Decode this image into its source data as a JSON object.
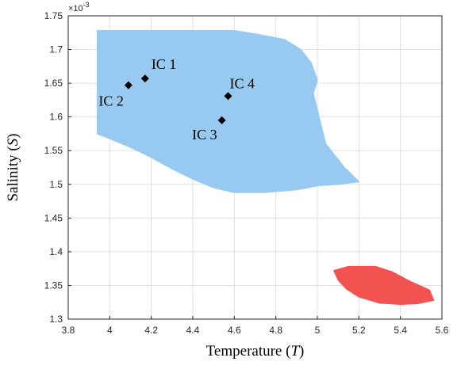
{
  "chart_data": {
    "type": "scatter",
    "title": "",
    "xlabel": {
      "text": "Temperature (",
      "symbol": "T",
      "close": ")"
    },
    "ylabel": {
      "text": "Salinity (",
      "symbol": "S",
      "close": ")"
    },
    "y_multiplier": "×10",
    "y_exponent": "-3",
    "xlim": [
      3.8,
      5.6
    ],
    "ylim": [
      1.3,
      1.75
    ],
    "xticks": [
      "3.8",
      "4",
      "4.2",
      "4.4",
      "4.6",
      "4.8",
      "5",
      "5.2",
      "5.4",
      "5.6"
    ],
    "yticks": [
      "1.3",
      "1.35",
      "1.4",
      "1.45",
      "1.5",
      "1.55",
      "1.6",
      "1.65",
      "1.7",
      "1.75"
    ],
    "grid": true,
    "regions": [
      {
        "color": "#98c9f0",
        "outline": [
          [
            3.94,
            1.728
          ],
          [
            4.6,
            1.728
          ],
          [
            4.72,
            1.722
          ],
          [
            4.84,
            1.715
          ],
          [
            4.92,
            1.7
          ],
          [
            4.97,
            1.68
          ],
          [
            5.0,
            1.655
          ],
          [
            4.98,
            1.635
          ],
          [
            5.0,
            1.61
          ],
          [
            5.02,
            1.585
          ],
          [
            5.04,
            1.56
          ],
          [
            5.13,
            1.525
          ],
          [
            5.2,
            1.504
          ],
          [
            5.1,
            1.5
          ],
          [
            5.0,
            1.498
          ],
          [
            4.9,
            1.492
          ],
          [
            4.74,
            1.488
          ],
          [
            4.6,
            1.488
          ],
          [
            4.5,
            1.495
          ],
          [
            4.4,
            1.508
          ],
          [
            4.3,
            1.523
          ],
          [
            4.2,
            1.54
          ],
          [
            4.1,
            1.555
          ],
          [
            4.0,
            1.568
          ],
          [
            3.94,
            1.575
          ]
        ]
      },
      {
        "color": "#f25350",
        "outline": [
          [
            5.08,
            1.372
          ],
          [
            5.15,
            1.378
          ],
          [
            5.28,
            1.378
          ],
          [
            5.36,
            1.37
          ],
          [
            5.44,
            1.357
          ],
          [
            5.54,
            1.343
          ],
          [
            5.56,
            1.328
          ],
          [
            5.48,
            1.323
          ],
          [
            5.4,
            1.322
          ],
          [
            5.3,
            1.324
          ],
          [
            5.2,
            1.333
          ],
          [
            5.14,
            1.345
          ],
          [
            5.1,
            1.358
          ]
        ]
      }
    ],
    "points": [
      {
        "label": "IC 1",
        "x": 4.17,
        "y": 1.657,
        "label_dx": 8,
        "label_dy": -12,
        "anchor": "start"
      },
      {
        "label": "IC 2",
        "x": 4.09,
        "y": 1.647,
        "label_dx": -6,
        "label_dy": 26,
        "anchor": "end"
      },
      {
        "label": "IC 3",
        "x": 4.54,
        "y": 1.595,
        "label_dx": -6,
        "label_dy": 24,
        "anchor": "end"
      },
      {
        "label": "IC 4",
        "x": 4.57,
        "y": 1.631,
        "label_dx": 2,
        "label_dy": -10,
        "anchor": "start"
      }
    ],
    "point_color": "#000000"
  }
}
